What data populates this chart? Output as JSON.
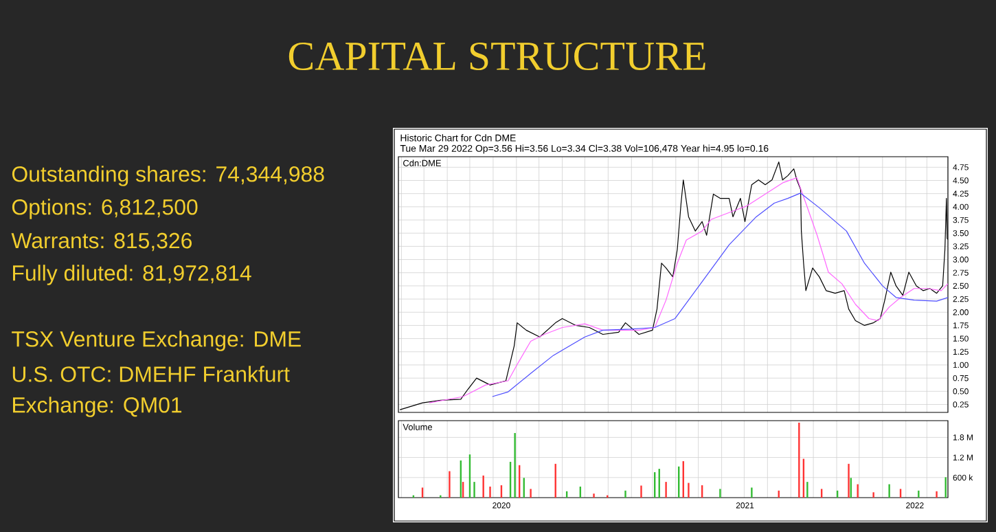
{
  "chart_data": [
    {
      "type": "other",
      "title": "CAPITAL STRUCTURE",
      "annotations": [
        "Outstanding shares: 74,344,988",
        "Options: 6,812,500",
        "Warrants: 815,326",
        "Fully diluted: 81,972,814",
        "TSX Venture Exchange: DME",
        "U.S. OTC: DMEHF Frankfurt",
        "Exchange: QM01"
      ]
    },
    {
      "type": "line",
      "title": "Historic Chart for Cdn DME",
      "subtitle": "Tue Mar 29 2022  Op=3.56  Hi=3.56  Lo=3.34  Cl=3.38  Vol=106,478  Year hi=4.95  lo=0.16",
      "annotations": [
        "Cdn:DME"
      ],
      "xlim": [
        "2020-03-28",
        "2022-03-29"
      ],
      "ylim": [
        0.1,
        4.95
      ],
      "xticks": [
        {
          "value": "2020-04-01",
          "label": null
        },
        {
          "value": "2020-05-01",
          "label": null
        },
        {
          "value": "2020-06-01",
          "label": null
        },
        {
          "value": "2020-07-01",
          "label": null
        },
        {
          "value": "2020-08-01",
          "label": null
        },
        {
          "value": "2020-09-01",
          "label": null
        },
        {
          "value": "2020-10-01",
          "label": null
        },
        {
          "value": "2020-11-01",
          "label": null
        },
        {
          "value": "2020-12-01",
          "label": null
        },
        {
          "value": "2021-01-01",
          "label": null
        },
        {
          "value": "2021-02-01",
          "label": null
        },
        {
          "value": "2021-03-01",
          "label": null
        },
        {
          "value": "2021-04-01",
          "label": null
        },
        {
          "value": "2021-05-01",
          "label": null
        },
        {
          "value": "2021-06-01",
          "label": null
        },
        {
          "value": "2021-07-01",
          "label": null
        },
        {
          "value": "2021-08-01",
          "label": null
        },
        {
          "value": "2021-09-01",
          "label": null
        },
        {
          "value": "2021-10-01",
          "label": null
        },
        {
          "value": "2021-11-01",
          "label": null
        },
        {
          "value": "2021-12-01",
          "label": null
        },
        {
          "value": "2022-01-01",
          "label": null
        },
        {
          "value": "2022-02-01",
          "label": null
        },
        {
          "value": "2022-03-01",
          "label": null
        }
      ],
      "yticks": [
        0.25,
        {
          "value": 0.5,
          "label": "0.50"
        },
        0.75,
        {
          "value": 1,
          "label": "1.00"
        },
        1.25,
        {
          "value": 1.5,
          "label": "1.50"
        },
        1.75,
        {
          "value": 2,
          "label": "2.00"
        },
        2.25,
        {
          "value": 2.5,
          "label": "2.50"
        },
        2.75,
        {
          "value": 3,
          "label": "3.00"
        },
        3.25,
        {
          "value": 3.5,
          "label": "3.50"
        },
        3.75,
        {
          "value": 4,
          "label": "4.00"
        },
        4.25,
        {
          "value": 4.5,
          "label": "4.50"
        },
        4.75
      ],
      "tick_labels": "y",
      "grid": true,
      "series": [
        {
          "color": "#000000",
          "x": [
            "2020-03-30",
            "2020-04-29",
            "2020-05-23",
            "2020-06-19",
            "2020-06-28",
            "2020-07-10",
            "2020-07-28",
            "2020-08-18",
            "2020-08-29",
            "2020-09-02",
            "2020-09-14",
            "2020-10-02",
            "2020-10-23",
            "2020-11-01",
            "2020-11-19",
            "2020-12-07",
            "2020-12-25",
            "2021-01-15",
            "2021-01-24",
            "2021-02-11",
            "2021-03-01",
            "2021-03-07",
            "2021-03-13",
            "2021-03-19",
            "2021-03-28",
            "2021-04-03",
            "2021-04-08",
            "2021-04-11",
            "2021-04-18",
            "2021-04-27",
            "2021-05-06",
            "2021-05-12",
            "2021-05-21",
            "2021-05-30",
            "2021-06-11",
            "2021-06-16",
            "2021-06-26",
            "2021-07-02",
            "2021-07-11",
            "2021-07-20",
            "2021-07-29",
            "2021-08-07",
            "2021-08-16",
            "2021-08-21",
            "2021-08-28",
            "2021-09-05",
            "2021-09-09",
            "2021-09-14",
            "2021-09-15",
            "2021-09-18",
            "2021-09-21",
            "2021-09-30",
            "2021-10-09",
            "2021-10-18",
            "2021-10-30",
            "2021-11-11",
            "2021-11-17",
            "2021-11-26",
            "2021-12-08",
            "2021-12-20",
            "2021-12-29",
            "2022-01-04",
            "2022-01-12",
            "2022-01-19",
            "2022-01-28",
            "2022-02-05",
            "2022-02-15",
            "2022-02-24",
            "2022-03-05",
            "2022-03-14",
            "2022-03-22",
            "2022-03-25",
            "2022-03-27",
            "2022-03-28",
            "2022-03-29"
          ],
          "values": [
            0.15,
            0.28,
            0.33,
            0.35,
            0.53,
            0.75,
            0.62,
            0.7,
            1.36,
            1.8,
            1.66,
            1.53,
            1.8,
            1.88,
            1.75,
            1.71,
            1.58,
            1.62,
            1.8,
            1.58,
            1.66,
            2.06,
            2.93,
            2.84,
            2.67,
            3.19,
            4.07,
            4.51,
            3.81,
            3.54,
            3.72,
            3.46,
            4.24,
            4.16,
            4.16,
            3.81,
            4.16,
            3.72,
            4.42,
            4.51,
            4.42,
            4.51,
            4.85,
            4.51,
            4.59,
            4.72,
            4.51,
            4.33,
            3.54,
            2.93,
            2.41,
            2.84,
            2.67,
            2.41,
            2.36,
            2.41,
            2.06,
            1.84,
            1.75,
            1.8,
            1.88,
            2.23,
            2.76,
            2.5,
            2.32,
            2.76,
            2.5,
            2.41,
            2.45,
            2.36,
            2.5,
            3.19,
            4.16,
            3.4,
            3.38
          ]
        },
        {
          "color": "#ff66ff",
          "x": [
            "2020-05-08",
            "2020-06-22",
            "2020-07-22",
            "2020-08-21",
            "2020-09-02",
            "2020-09-20",
            "2020-10-08",
            "2020-11-01",
            "2020-12-01",
            "2020-12-25",
            "2021-01-18",
            "2021-02-11",
            "2021-03-04",
            "2021-03-19",
            "2021-04-03",
            "2021-04-15",
            "2021-05-06",
            "2021-05-18",
            "2021-06-11",
            "2021-07-05",
            "2021-07-29",
            "2021-08-22",
            "2021-09-09",
            "2021-09-21",
            "2021-10-06",
            "2021-10-21",
            "2021-11-08",
            "2021-11-26",
            "2021-12-14",
            "2021-12-26",
            "2022-01-10",
            "2022-01-25",
            "2022-02-12",
            "2022-03-02",
            "2022-03-20",
            "2022-03-29"
          ],
          "values": [
            0.28,
            0.4,
            0.62,
            0.7,
            1.01,
            1.45,
            1.58,
            1.71,
            1.78,
            1.66,
            1.66,
            1.66,
            1.71,
            2.23,
            2.93,
            3.37,
            3.54,
            3.76,
            3.89,
            4.02,
            4.24,
            4.46,
            4.55,
            4.07,
            3.46,
            2.76,
            2.54,
            2.15,
            1.88,
            1.84,
            2.1,
            2.28,
            2.45,
            2.45,
            2.41,
            2.54
          ]
        },
        {
          "color": "#4d4dff",
          "x": [
            "2020-07-31",
            "2020-08-21",
            "2020-09-20",
            "2020-10-20",
            "2020-12-01",
            "2020-12-25",
            "2021-01-30",
            "2021-03-04",
            "2021-03-31",
            "2021-05-06",
            "2021-06-11",
            "2021-07-17",
            "2021-08-10",
            "2021-08-28",
            "2021-09-14",
            "2021-10-09",
            "2021-11-14",
            "2021-12-08",
            "2022-01-01",
            "2022-01-19",
            "2022-02-12",
            "2022-03-14",
            "2022-03-29"
          ],
          "values": [
            0.4,
            0.49,
            0.84,
            1.18,
            1.53,
            1.66,
            1.68,
            1.71,
            1.88,
            2.58,
            3.28,
            3.81,
            4.07,
            4.16,
            4.26,
            3.98,
            3.54,
            2.93,
            2.5,
            2.28,
            2.23,
            2.21,
            2.28
          ]
        }
      ]
    },
    {
      "type": "bar",
      "title": "Volume",
      "xlim": [
        "2020-03-28",
        "2022-03-29"
      ],
      "ylim": [
        0,
        2300000
      ],
      "xticks": [
        {
          "value": "2020-04-01",
          "label": null
        },
        {
          "value": "2020-05-01",
          "label": null
        },
        {
          "value": "2020-06-01",
          "label": null
        },
        {
          "value": "2020-07-01",
          "label": null
        },
        {
          "value": "2020-08-01",
          "label": null
        },
        {
          "value": "2020-08-12",
          "label": "2020"
        },
        {
          "value": "2020-09-01",
          "label": null
        },
        {
          "value": "2020-10-01",
          "label": null
        },
        {
          "value": "2020-11-01",
          "label": null
        },
        {
          "value": "2020-12-01",
          "label": null
        },
        {
          "value": "2021-01-01",
          "label": null
        },
        {
          "value": "2021-02-01",
          "label": null
        },
        {
          "value": "2021-03-01",
          "label": null
        },
        {
          "value": "2021-04-01",
          "label": null
        },
        {
          "value": "2021-05-01",
          "label": null
        },
        {
          "value": "2021-06-01",
          "label": null
        },
        {
          "value": "2021-07-01",
          "label": null
        },
        {
          "value": "2021-07-02",
          "label": "2021"
        },
        {
          "value": "2021-08-01",
          "label": null
        },
        {
          "value": "2021-09-01",
          "label": null
        },
        {
          "value": "2021-10-01",
          "label": null
        },
        {
          "value": "2021-11-01",
          "label": null
        },
        {
          "value": "2021-12-01",
          "label": null
        },
        {
          "value": "2022-01-01",
          "label": null
        },
        {
          "value": "2022-02-01",
          "label": null
        },
        {
          "value": "2022-02-13",
          "label": "2022"
        },
        {
          "value": "2022-03-01",
          "label": null
        }
      ],
      "yticks": [
        {
          "value": 600000,
          "label": "600 k"
        },
        {
          "value": 1200000,
          "label": "1.2 M"
        },
        {
          "value": 1800000,
          "label": "1.8 M"
        }
      ],
      "grid": true,
      "x": [
        "2020-04-17",
        "2020-04-29",
        "2020-05-23",
        "2020-06-04",
        "2020-06-19",
        "2020-06-22",
        "2020-07-01",
        "2020-07-07",
        "2020-07-19",
        "2020-07-28",
        "2020-08-12",
        "2020-08-24",
        "2020-08-30",
        "2020-09-05",
        "2020-09-11",
        "2020-09-20",
        "2020-10-23",
        "2020-11-07",
        "2020-11-25",
        "2020-12-13",
        "2020-12-31",
        "2021-01-24",
        "2021-02-14",
        "2021-03-04",
        "2021-03-10",
        "2021-03-19",
        "2021-04-05",
        "2021-04-11",
        "2021-04-18",
        "2021-05-06",
        "2021-05-30",
        "2021-07-11",
        "2021-08-16",
        "2021-09-12",
        "2021-09-18",
        "2021-09-23",
        "2021-10-12",
        "2021-11-02",
        "2021-11-17",
        "2021-11-20",
        "2021-11-29",
        "2021-12-20",
        "2022-01-10",
        "2022-01-25",
        "2022-02-18",
        "2022-03-14",
        "2022-03-26"
      ],
      "values": [
        70000,
        300000,
        70000,
        790000,
        1110000,
        470000,
        1290000,
        470000,
        660000,
        330000,
        370000,
        1070000,
        1930000,
        970000,
        590000,
        260000,
        1010000,
        190000,
        330000,
        120000,
        70000,
        210000,
        360000,
        760000,
        860000,
        470000,
        930000,
        1090000,
        440000,
        370000,
        260000,
        300000,
        210000,
        2240000,
        1160000,
        470000,
        260000,
        210000,
        1010000,
        590000,
        400000,
        160000,
        400000,
        260000,
        210000,
        190000,
        610000
      ],
      "colors": [
        "#33bb33",
        "#ff3333",
        "#33bb33",
        "#ff3333",
        "#33bb33",
        "#ff3333",
        "#33bb33",
        "#33bb33",
        "#ff3333",
        "#ff3333",
        "#ff3333",
        "#33bb33",
        "#33bb33",
        "#ff3333",
        "#33bb33",
        "#ff3333",
        "#ff3333",
        "#33bb33",
        "#33bb33",
        "#ff3333",
        "#ff3333",
        "#33bb33",
        "#ff3333",
        "#33bb33",
        "#33bb33",
        "#ff3333",
        "#33bb33",
        "#ff3333",
        "#ff3333",
        "#ff3333",
        "#33bb33",
        "#33bb33",
        "#ff3333",
        "#ff3333",
        "#ff3333",
        "#33bb33",
        "#ff3333",
        "#33bb33",
        "#ff3333",
        "#33bb33",
        "#ff3333",
        "#ff3333",
        "#33bb33",
        "#ff3333",
        "#33bb33",
        "#ff3333",
        "#33bb33"
      ]
    }
  ]
}
